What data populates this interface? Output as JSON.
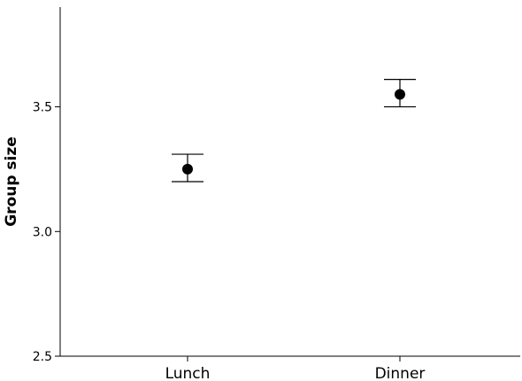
{
  "chart_data": {
    "type": "scatter",
    "title": "",
    "xlabel": "",
    "ylabel": "Group size",
    "categories": [
      "Lunch",
      "Dinner"
    ],
    "values": [
      3.25,
      3.55
    ],
    "error_lower": [
      3.2,
      3.5
    ],
    "error_upper": [
      3.31,
      3.61
    ],
    "ylim": [
      2.5,
      3.9
    ],
    "yticks": [
      2.5,
      3.0,
      3.5
    ],
    "ytick_labels": [
      "2.5",
      "3.0",
      "3.5"
    ],
    "grid": false,
    "legend": "none",
    "colors": {
      "marker": "#000000",
      "axis": "#000000"
    }
  }
}
